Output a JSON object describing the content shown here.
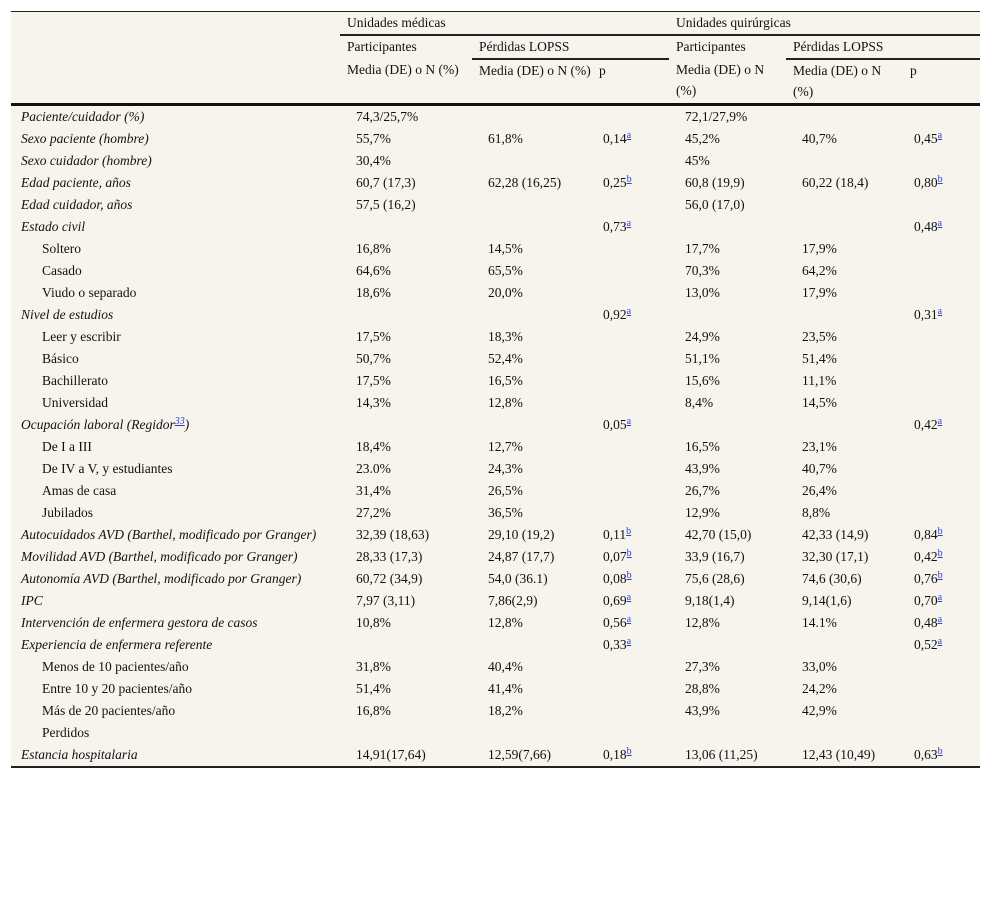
{
  "header": {
    "group_medical": "Unidades médicas",
    "group_surgical": "Unidades quirúrgicas",
    "participants": "Participantes",
    "losses": "Pérdidas LOPSS",
    "stat": "Media (DE) o N (%)",
    "p": "p"
  },
  "rows": [
    {
      "label": "Paciente/cuidador (%)",
      "style": "it",
      "cells": [
        "74,3/25,7%",
        "",
        "",
        "72,1/27,9%",
        "",
        ""
      ],
      "psup": [
        "",
        ""
      ]
    },
    {
      "label": "Sexo paciente (hombre)",
      "style": "it",
      "cells": [
        "55,7%",
        "61,8%",
        "0,14",
        "45,2%",
        "40,7%",
        "0,45"
      ],
      "psup": [
        "a",
        "a"
      ]
    },
    {
      "label": "Sexo cuidador (hombre)",
      "style": "it",
      "cells": [
        "30,4%",
        "",
        "",
        "45%",
        "",
        ""
      ],
      "psup": [
        "",
        ""
      ]
    },
    {
      "label": "Edad paciente, años",
      "style": "it",
      "cells": [
        "60,7 (17,3)",
        "62,28 (16,25)",
        "0,25",
        "60,8 (19,9)",
        "60,22 (18,4)",
        "0,80"
      ],
      "psup": [
        "b",
        "b"
      ]
    },
    {
      "label": "Edad cuidador, años",
      "style": "it",
      "cells": [
        "57,5 (16,2)",
        "",
        "",
        "56,0 (17,0)",
        "",
        ""
      ],
      "psup": [
        "",
        ""
      ]
    },
    {
      "label": "Estado civil",
      "style": "it",
      "cells": [
        "",
        "",
        "0,73",
        "",
        "",
        "0,48"
      ],
      "psup": [
        "a",
        "a"
      ]
    },
    {
      "label": "Soltero",
      "style": "ind",
      "cells": [
        "16,8%",
        "14,5%",
        "",
        "17,7%",
        "17,9%",
        ""
      ],
      "psup": [
        "",
        ""
      ]
    },
    {
      "label": "Casado",
      "style": "ind",
      "cells": [
        "64,6%",
        "65,5%",
        "",
        "70,3%",
        "64,2%",
        ""
      ],
      "psup": [
        "",
        ""
      ]
    },
    {
      "label": "Viudo o separado",
      "style": "ind",
      "cells": [
        "18,6%",
        "20,0%",
        "",
        "13,0%",
        "17,9%",
        ""
      ],
      "psup": [
        "",
        ""
      ]
    },
    {
      "label": "Nivel de estudios",
      "style": "it",
      "cells": [
        "",
        "",
        "0,92",
        "",
        "",
        "0,31"
      ],
      "psup": [
        "a",
        "a"
      ]
    },
    {
      "label": "Leer y escribir",
      "style": "ind",
      "cells": [
        "17,5%",
        "18,3%",
        "",
        "24,9%",
        "23,5%",
        ""
      ],
      "psup": [
        "",
        ""
      ]
    },
    {
      "label": "Básico",
      "style": "ind",
      "cells": [
        "50,7%",
        "52,4%",
        "",
        "51,1%",
        "51,4%",
        ""
      ],
      "psup": [
        "",
        ""
      ]
    },
    {
      "label": "Bachillerato",
      "style": "ind",
      "cells": [
        "17,5%",
        "16,5%",
        "",
        "15,6%",
        "11,1%",
        ""
      ],
      "psup": [
        "",
        ""
      ]
    },
    {
      "label": "Universidad",
      "style": "ind",
      "cells": [
        "14,3%",
        "12,8%",
        "",
        "8,4%",
        "14,5%",
        ""
      ],
      "psup": [
        "",
        ""
      ]
    },
    {
      "label": "Ocupación laboral (Regidor",
      "label_ref": "33",
      "label_tail": ")",
      "style": "it",
      "cells": [
        "",
        "",
        "0,05",
        "",
        "",
        "0,42"
      ],
      "psup": [
        "a",
        "a"
      ]
    },
    {
      "label": "De I a III",
      "style": "ind",
      "cells": [
        "18,4%",
        "12,7%",
        "",
        "16,5%",
        "23,1%",
        ""
      ],
      "psup": [
        "",
        ""
      ]
    },
    {
      "label": "De IV a V, y estudiantes",
      "style": "ind",
      "cells": [
        "23.0%",
        "24,3%",
        "",
        "43,9%",
        "40,7%",
        ""
      ],
      "psup": [
        "",
        ""
      ]
    },
    {
      "label": "Amas de casa",
      "style": "ind",
      "cells": [
        "31,4%",
        "26,5%",
        "",
        "26,7%",
        "26,4%",
        ""
      ],
      "psup": [
        "",
        ""
      ]
    },
    {
      "label": "Jubilados",
      "style": "ind",
      "cells": [
        "27,2%",
        "36,5%",
        "",
        "12,9%",
        "8,8%",
        ""
      ],
      "psup": [
        "",
        ""
      ]
    },
    {
      "label": "Autocuidados AVD (Barthel, modificado por Granger)",
      "style": "it",
      "cells": [
        "32,39 (18,63)",
        "29,10 (19,2)",
        "0,11",
        "42,70 (15,0)",
        "42,33 (14,9)",
        "0,84"
      ],
      "psup": [
        "b",
        "b"
      ]
    },
    {
      "label": "Movilidad AVD (Barthel, modificado por Granger)",
      "style": "it",
      "cells": [
        "28,33 (17,3)",
        "24,87 (17,7)",
        "0,07",
        "33,9 (16,7)",
        "32,30 (17,1)",
        "0,42"
      ],
      "psup": [
        "b",
        "b"
      ]
    },
    {
      "label": "Autonomía AVD (Barthel, modificado por Granger)",
      "style": "it",
      "cells": [
        "60,72 (34,9)",
        "54,0 (36.1)",
        "0,08",
        "75,6 (28,6)",
        "74,6 (30,6)",
        "0,76"
      ],
      "psup": [
        "b",
        "b"
      ]
    },
    {
      "label": "IPC",
      "style": "it",
      "cells": [
        "7,97 (3,11)",
        "7,86(2,9)",
        "0,69",
        "9,18(1,4)",
        "9,14(1,6)",
        "0,70"
      ],
      "psup": [
        "a",
        "a"
      ]
    },
    {
      "label": "Intervención de enfermera gestora de casos",
      "style": "it",
      "cells": [
        "10,8%",
        "12,8%",
        "0,56",
        "12,8%",
        "14.1%",
        "0,48"
      ],
      "psup": [
        "a",
        "a"
      ]
    },
    {
      "label": "Experiencia de enfermera referente",
      "style": "it",
      "cells": [
        "",
        "",
        "0,33",
        "",
        "",
        "0,52"
      ],
      "psup": [
        "a",
        "a"
      ]
    },
    {
      "label": "Menos de 10 pacientes/año",
      "style": "ind",
      "cells": [
        "31,8%",
        "40,4%",
        "",
        "27,3%",
        "33,0%",
        ""
      ],
      "psup": [
        "",
        ""
      ]
    },
    {
      "label": "Entre 10 y 20 pacientes/año",
      "style": "ind",
      "cells": [
        "51,4%",
        "41,4%",
        "",
        "28,8%",
        "24,2%",
        ""
      ],
      "psup": [
        "",
        ""
      ]
    },
    {
      "label": "Más de 20 pacientes/año",
      "style": "ind",
      "cells": [
        "16,8%",
        "18,2%",
        "",
        "43,9%",
        "42,9%",
        ""
      ],
      "psup": [
        "",
        ""
      ]
    },
    {
      "label": "Perdidos",
      "style": "ind",
      "cells": [
        "",
        "",
        "",
        "",
        "",
        ""
      ],
      "psup": [
        "",
        ""
      ]
    },
    {
      "label": "Estancia hospitalaria",
      "style": "it",
      "cells": [
        "14,91(17,64)",
        "12,59(7,66)",
        "0,18",
        "13,06 (11,25)",
        "12,43 (10,49)",
        "0,63"
      ],
      "psup": [
        "b",
        "b"
      ]
    }
  ]
}
